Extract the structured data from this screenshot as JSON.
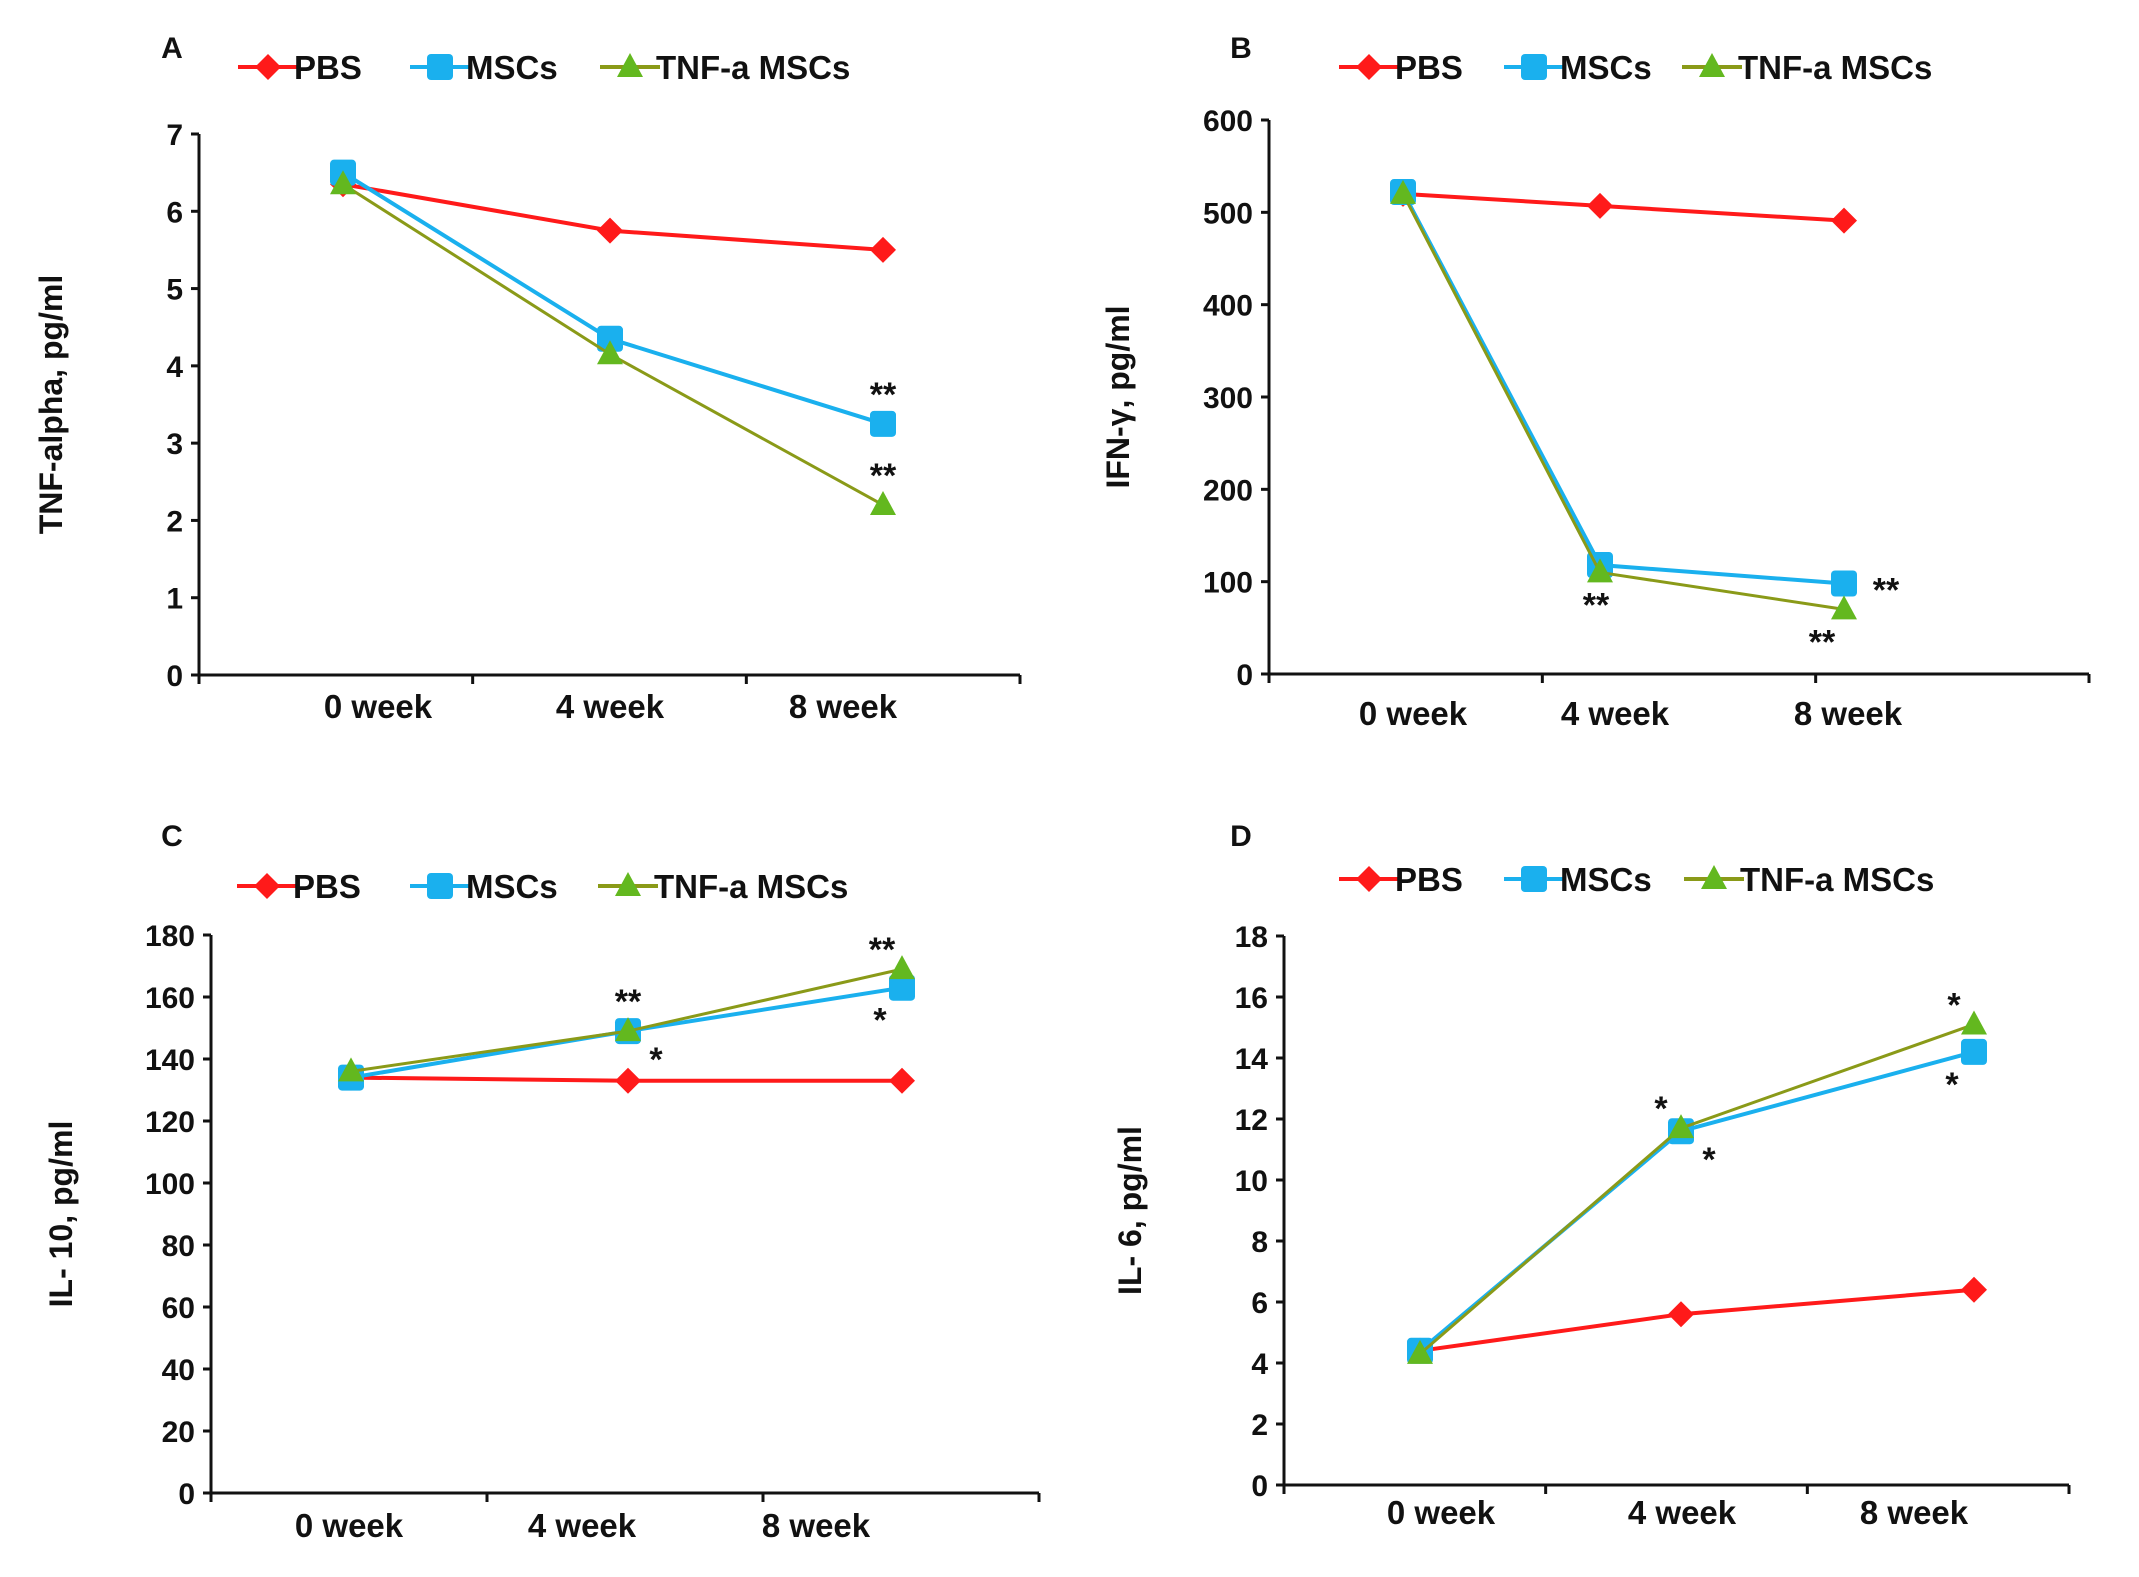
{
  "figure": {
    "legend": {
      "PBS": "PBS",
      "MSCs": "MSCs",
      "TNF": "TNF-a MSCs"
    },
    "colors": {
      "PBS": "#ff1a1a",
      "MSCs": "#1ab0ee",
      "TNF": "#63b81f",
      "TNF_line": "#8a9a18",
      "axis": "#111111"
    }
  },
  "chart_data": [
    {
      "panel": "A",
      "type": "line",
      "categories": [
        "0 week",
        "4 week",
        "8 week"
      ],
      "ylabel": "TNF-alpha, pg/ml",
      "ylim": [
        0,
        7
      ],
      "yticks": [
        "0",
        "1",
        "2",
        "3",
        "4",
        "5",
        "6",
        "7"
      ],
      "series": [
        {
          "key": "PBS",
          "name": "PBS",
          "values": [
            6.35,
            5.75,
            5.5
          ]
        },
        {
          "key": "MSCs",
          "name": "MSCs",
          "values": [
            6.5,
            4.35,
            3.25
          ]
        },
        {
          "key": "TNF",
          "name": "TNF-a MSCs",
          "values": [
            6.35,
            4.15,
            2.2
          ]
        }
      ],
      "annotations": [
        {
          "text": "**",
          "x": 2,
          "y": 3.25,
          "pos": "above"
        },
        {
          "text": "**",
          "x": 2,
          "y": 2.2,
          "pos": "above"
        }
      ]
    },
    {
      "panel": "B",
      "type": "line",
      "categories": [
        "0 week",
        "4 week",
        "8 week"
      ],
      "ylabel": "IFN-γ, pg/ml",
      "ylim": [
        0,
        600
      ],
      "yticks": [
        "0",
        "100",
        "200",
        "300",
        "400",
        "500",
        "600"
      ],
      "series": [
        {
          "key": "PBS",
          "name": "PBS",
          "values": [
            520,
            507,
            491
          ]
        },
        {
          "key": "MSCs",
          "name": "MSCs",
          "values": [
            522,
            118,
            98
          ]
        },
        {
          "key": "TNF",
          "name": "TNF-a MSCs",
          "values": [
            520,
            110,
            70
          ]
        }
      ],
      "annotations": [
        {
          "text": "**",
          "x": 1,
          "y": 110,
          "pos": "below"
        },
        {
          "text": "**",
          "x": 2,
          "y": 98,
          "pos": "right"
        },
        {
          "text": "**",
          "x": 2,
          "y": 70,
          "pos": "belowleft"
        }
      ]
    },
    {
      "panel": "C",
      "type": "line",
      "categories": [
        "0 week",
        "4 week",
        "8 week"
      ],
      "ylabel": "IL- 10, pg/ml",
      "ylim": [
        0,
        180
      ],
      "yticks": [
        "0",
        "20",
        "40",
        "60",
        "80",
        "100",
        "120",
        "140",
        "160",
        "180"
      ],
      "series": [
        {
          "key": "PBS",
          "name": "PBS",
          "values": [
            134,
            133,
            133
          ]
        },
        {
          "key": "MSCs",
          "name": "MSCs",
          "values": [
            134,
            149,
            163
          ]
        },
        {
          "key": "TNF",
          "name": "TNF-a MSCs",
          "values": [
            136,
            149,
            169
          ]
        }
      ],
      "annotations": [
        {
          "text": "**",
          "x": 1,
          "y": 149,
          "pos": "above"
        },
        {
          "text": "*",
          "x": 1,
          "y": 149,
          "pos": "belowright"
        },
        {
          "text": "**",
          "x": 2,
          "y": 169,
          "pos": "aboveleft"
        },
        {
          "text": "*",
          "x": 2,
          "y": 163,
          "pos": "belowleft"
        }
      ]
    },
    {
      "panel": "D",
      "type": "line",
      "categories": [
        "0 week",
        "4 week",
        "8 week"
      ],
      "ylabel": "IL- 6, pg/ml",
      "ylim": [
        0,
        18
      ],
      "yticks": [
        "0",
        "2",
        "4",
        "6",
        "8",
        "10",
        "12",
        "14",
        "16",
        "18"
      ],
      "series": [
        {
          "key": "PBS",
          "name": "PBS",
          "values": [
            4.4,
            5.6,
            6.4
          ]
        },
        {
          "key": "MSCs",
          "name": "MSCs",
          "values": [
            4.4,
            11.6,
            14.2
          ]
        },
        {
          "key": "TNF",
          "name": "TNF-a MSCs",
          "values": [
            4.3,
            11.7,
            15.1
          ]
        }
      ],
      "annotations": [
        {
          "text": "*",
          "x": 1,
          "y": 11.7,
          "pos": "aboveleft"
        },
        {
          "text": "*",
          "x": 1,
          "y": 11.6,
          "pos": "belowright"
        },
        {
          "text": "*",
          "x": 2,
          "y": 15.1,
          "pos": "aboveleft"
        },
        {
          "text": "*",
          "x": 2,
          "y": 14.2,
          "pos": "belowleft"
        }
      ]
    }
  ]
}
